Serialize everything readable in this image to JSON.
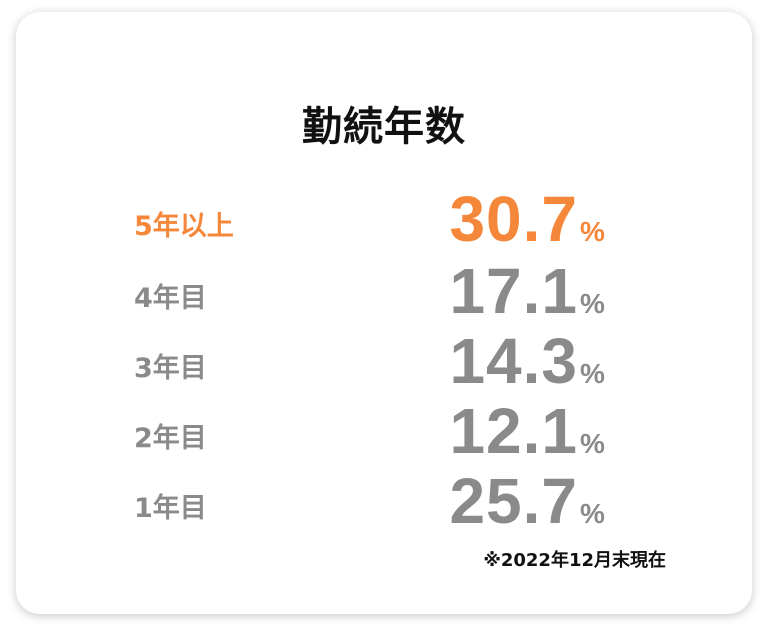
{
  "title": "勤続年数",
  "unit": "%",
  "rows": [
    {
      "label": "5年以上",
      "value": 30.7
    },
    {
      "label": "4年目",
      "value": 17.1
    },
    {
      "label": "3年目",
      "value": 14.3
    },
    {
      "label": "2年目",
      "value": 12.1
    },
    {
      "label": "1年目",
      "value": 25.7
    }
  ],
  "note": "※2022年12月末現在"
}
